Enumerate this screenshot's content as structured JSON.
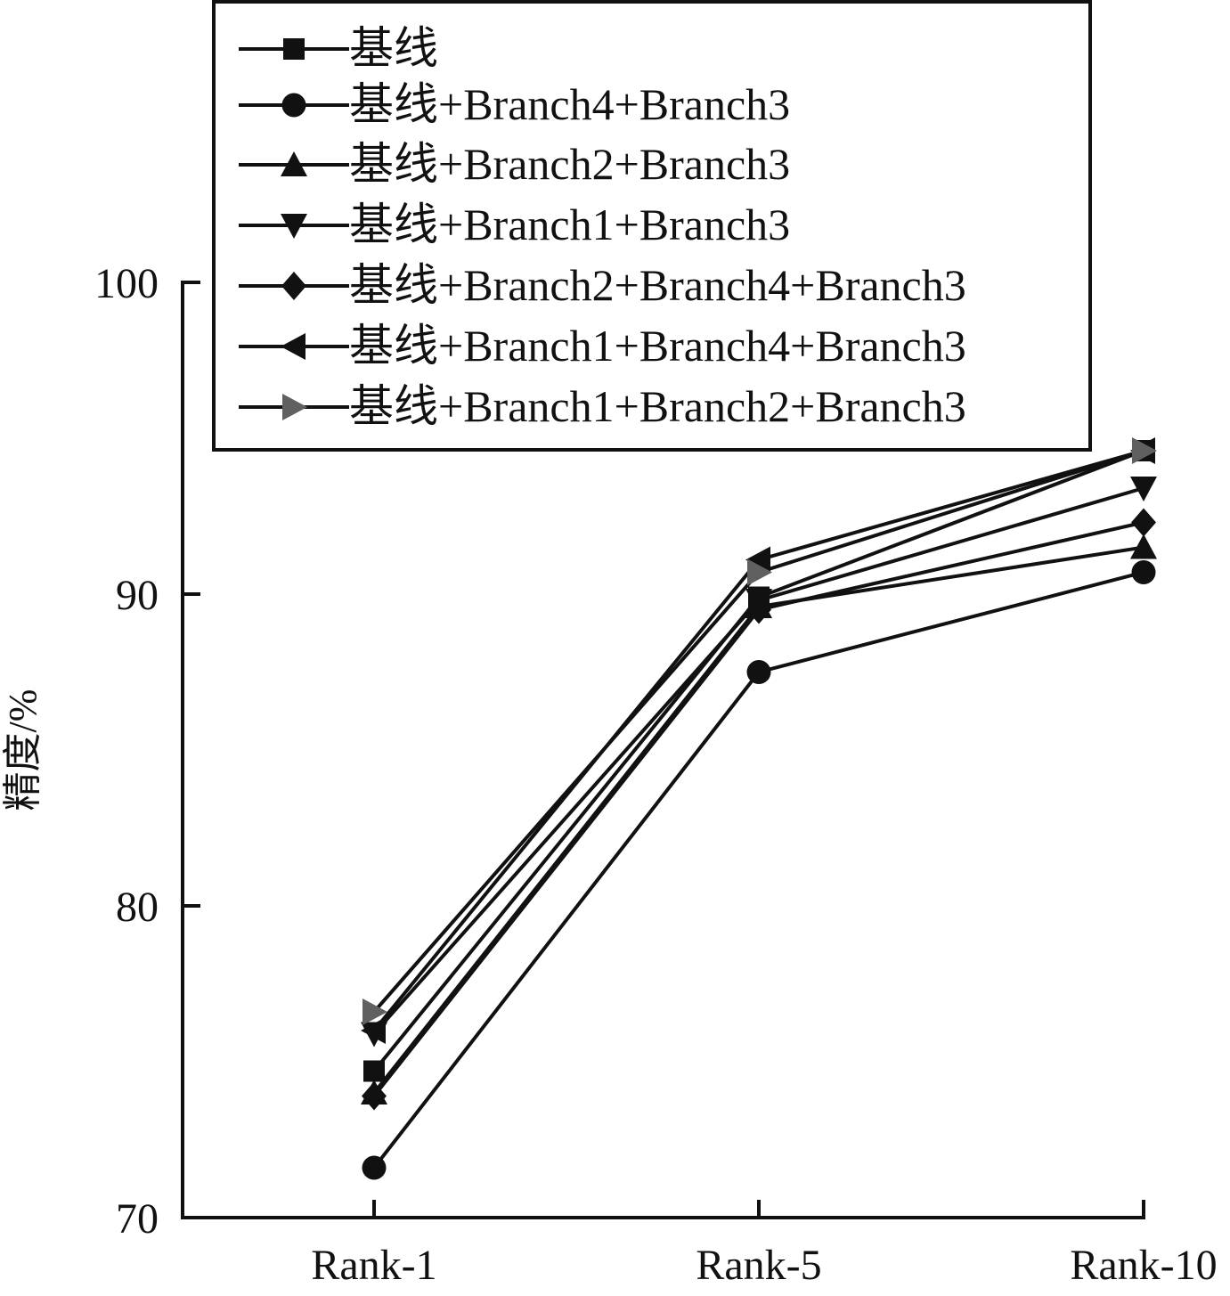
{
  "chart_data": {
    "type": "line",
    "title": "",
    "xlabel": "",
    "ylabel": "精度/%",
    "categories": [
      "Rank-1",
      "Rank-5",
      "Rank-10"
    ],
    "ylim": [
      70,
      100
    ],
    "yticks": [
      "70",
      "80",
      "90",
      "100"
    ],
    "grid": false,
    "legend_position": "top",
    "series": [
      {
        "name": "基线",
        "marker": "square",
        "color": "#111111",
        "values": [
          74.7,
          89.9,
          94.6
        ]
      },
      {
        "name": "基线+Branch4+Branch3",
        "marker": "circle",
        "color": "#111111",
        "values": [
          71.6,
          87.5,
          90.7
        ]
      },
      {
        "name": "基线+Branch2+Branch3",
        "marker": "triangle-up",
        "color": "#111111",
        "values": [
          74.0,
          89.6,
          91.5
        ]
      },
      {
        "name": "基线+Branch1+Branch3",
        "marker": "triangle-down",
        "color": "#111111",
        "values": [
          75.9,
          89.8,
          93.4
        ]
      },
      {
        "name": "基线+Branch2+Branch4+Branch3",
        "marker": "diamond",
        "color": "#111111",
        "values": [
          73.9,
          89.5,
          92.3
        ]
      },
      {
        "name": "基线+Branch1+Branch4+Branch3",
        "marker": "triangle-left",
        "color": "#111111",
        "values": [
          76.0,
          91.1,
          94.6
        ]
      },
      {
        "name": "基线+Branch1+Branch2+Branch3",
        "marker": "triangle-right",
        "color": "#606060",
        "values": [
          76.6,
          90.7,
          94.6
        ]
      }
    ]
  }
}
